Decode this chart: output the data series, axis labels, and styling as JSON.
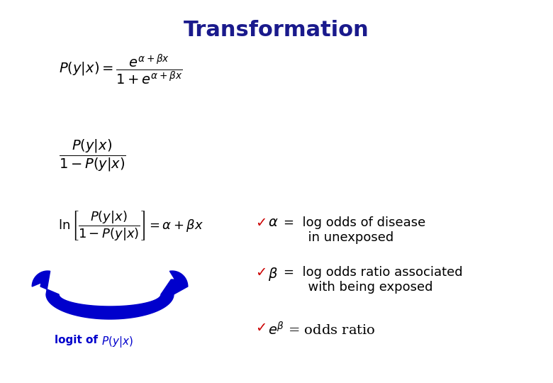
{
  "title": "Transformation",
  "title_color": "#1a1a8c",
  "title_fontsize": 22,
  "title_fontweight": "bold",
  "bg_color": "#ffffff",
  "math_color": "#000000",
  "blue_color": "#0000cc",
  "check_color": "#cc0000",
  "eq1": "$P(y|x) = \\dfrac{e^{\\alpha+\\beta x}}{1+e^{\\alpha+\\beta x}}$",
  "eq2": "$\\dfrac{P(y|x)}{1-P(y|x)}$",
  "eq3": "$\\ln\\left[\\dfrac{P(y|x)}{1-P(y|x)}\\right] = \\alpha + \\beta x$",
  "logit_label_plain": "logit of ",
  "logit_label_math": "$P(y|x)$",
  "check": "✓",
  "fig_width": 7.8,
  "fig_height": 5.4,
  "fig_dpi": 100
}
